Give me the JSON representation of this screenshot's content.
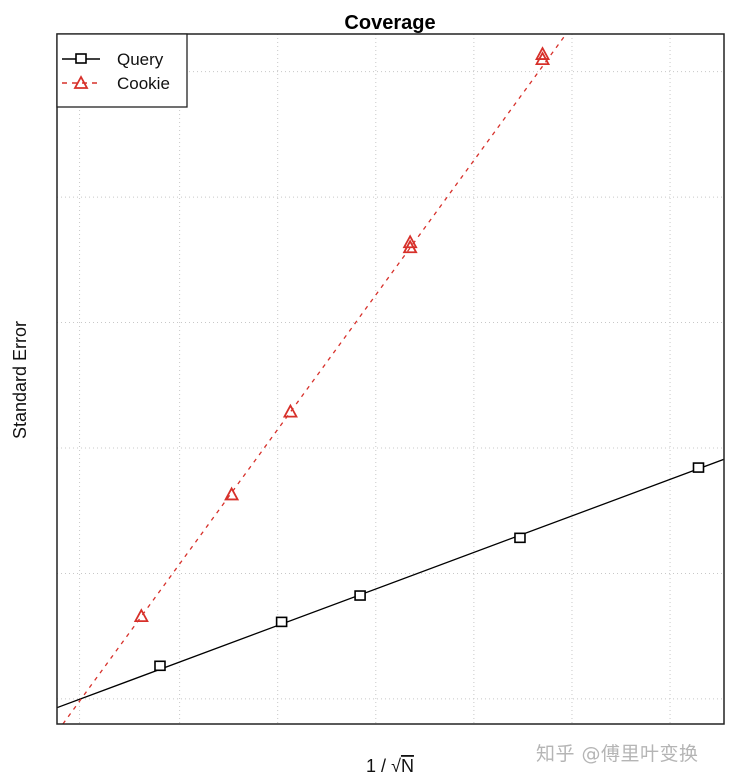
{
  "chart_data": {
    "type": "line",
    "title": "Coverage",
    "xlabel": "1 / √N",
    "xlabel_parts": {
      "prefix": "1 / ",
      "radical": "√",
      "var": "N"
    },
    "ylabel": "Standard Error",
    "grid": true,
    "axis_ticks_labeled": false,
    "legend_position": "top-left",
    "xlim": [
      0,
      6.8
    ],
    "ylim": [
      0,
      5.5
    ],
    "grid_x": [
      0.23,
      1.25,
      2.25,
      3.25,
      4.25,
      5.25,
      6.25
    ],
    "grid_y": [
      0.2,
      1.2,
      2.2,
      3.2,
      4.2,
      5.2
    ],
    "series": [
      {
        "name": "Query",
        "color": "#000000",
        "line_style": "solid",
        "marker": "square",
        "x": [
          1.05,
          2.29,
          3.09,
          4.72,
          6.54
        ],
        "y": [
          0.46,
          0.81,
          1.02,
          1.48,
          2.04
        ],
        "fit_line": {
          "x": [
            0,
            6.8
          ],
          "y": [
            0.13,
            2.11
          ]
        }
      },
      {
        "name": "Cookie",
        "color": "#d7302a",
        "line_style": "dashed",
        "marker": "triangle",
        "x": [
          0.86,
          1.78,
          2.38,
          3.6,
          3.6,
          4.95,
          4.95
        ],
        "y": [
          0.86,
          1.83,
          2.49,
          3.8,
          3.84,
          5.3,
          5.34
        ],
        "fit_line": {
          "x": [
            0.06,
            5.19
          ],
          "y": [
            0,
            5.5
          ]
        }
      }
    ]
  },
  "legend": {
    "items": [
      {
        "label": "Query",
        "color": "#000000",
        "marker": "square",
        "dash": ""
      },
      {
        "label": "Cookie",
        "color": "#d7302a",
        "marker": "triangle",
        "dash": "5,5"
      }
    ]
  },
  "watermark": "知乎 @傅里叶变换"
}
